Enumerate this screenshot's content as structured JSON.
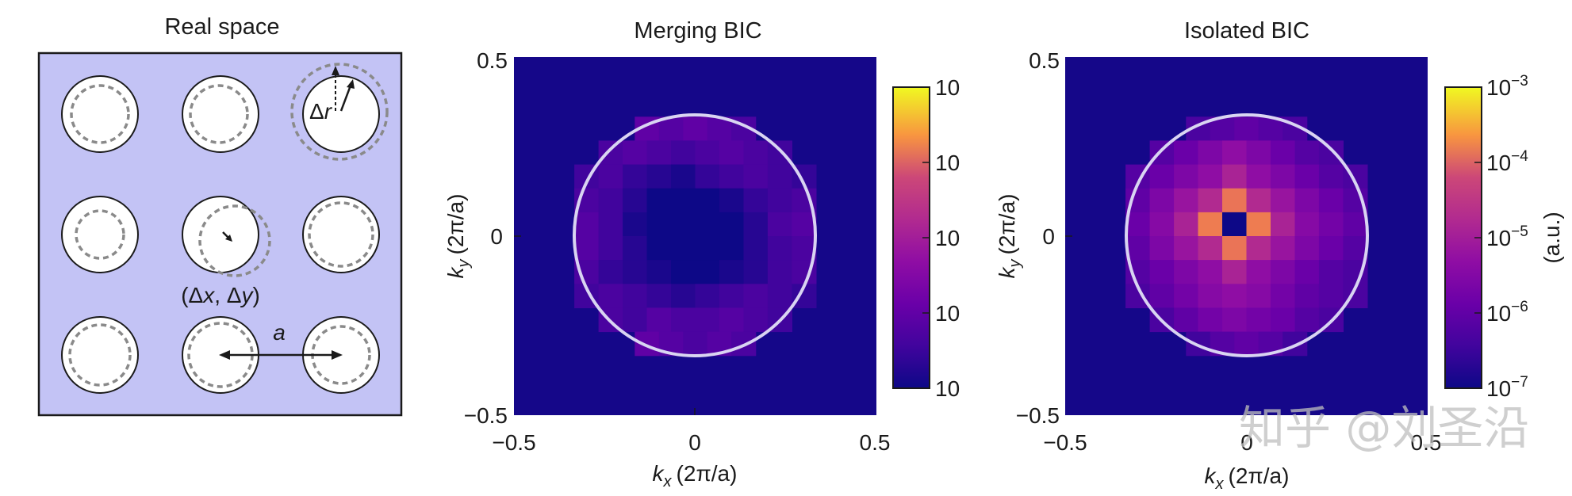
{
  "panel_a": {
    "title": "Real space",
    "dr_label_delta": "Δ",
    "dr_label_r": "r",
    "displacement_label": "(Δx, Δy)",
    "dx_delta": "Δ",
    "dx_var": "x",
    "dy_delta": "Δ",
    "dy_var": "y",
    "lattice_label": "a"
  },
  "panel_b": {
    "title": "Merging BIC",
    "colorbar_labels": [
      "10",
      "10",
      "10",
      "10",
      "10"
    ]
  },
  "panel_c": {
    "title": "Isolated BIC",
    "colorbar_base": "10",
    "colorbar_exponents": [
      "−3",
      "−4",
      "−5",
      "−6",
      "−7"
    ],
    "colorbar_unit": "(a.u.)"
  },
  "axes": {
    "xlabel_k": "k",
    "xlabel_sub": "x",
    "xlabel_unit": "(2π/a)",
    "ylabel_k": "k",
    "ylabel_sub": "y",
    "ylabel_unit": "(2π/a)",
    "tick_neg": "−0.5",
    "tick_zero": "0",
    "tick_pos": "0.5"
  },
  "watermark": "知乎 @刘圣沿",
  "colors": {
    "lattice_bg": "#c3c3f5",
    "map_bg": "#150789",
    "ring": "#d9d4f2"
  },
  "chart_data": [
    {
      "type": "heatmap",
      "title": "Merging BIC",
      "xlabel": "k_x (2π/a)",
      "ylabel": "k_y (2π/a)",
      "xlim": [
        -0.5,
        0.5
      ],
      "ylim": [
        -0.5,
        0.5
      ],
      "xticks": [
        -0.5,
        0,
        0.5
      ],
      "yticks": [
        -0.5,
        0,
        0.5
      ],
      "pixel_size": 0.0667,
      "circle_radius": 0.333,
      "colormap": "plasma",
      "color_scale": "log",
      "clim_log10": [
        -7,
        -3
      ],
      "rows_top_to_bottom": [
        [
          -6.3,
          -6.4,
          -6.3,
          -6.4,
          -6.5
        ],
        [
          -6.5,
          -6.4,
          -6.5,
          -6.6,
          -6.5,
          -6.4,
          -6.5,
          -6.6
        ],
        [
          -6.6,
          -6.5,
          -6.7,
          -6.8,
          -6.9,
          -6.7,
          -6.6,
          -6.5,
          -6.6,
          -6.7
        ],
        [
          -6.5,
          -6.6,
          -6.8,
          -7.0,
          -7.0,
          -7.0,
          -6.9,
          -6.7,
          -6.6,
          -6.5
        ],
        [
          -6.4,
          -6.6,
          -6.9,
          -7.0,
          -7.0,
          -7.0,
          -7.0,
          -6.8,
          -6.5,
          -6.4
        ],
        [
          -6.4,
          -6.6,
          -6.8,
          -7.0,
          -7.0,
          -7.0,
          -7.0,
          -6.8,
          -6.6,
          -6.5
        ],
        [
          -6.5,
          -6.7,
          -6.8,
          -6.9,
          -7.0,
          -7.0,
          -6.9,
          -6.8,
          -6.6,
          -6.5
        ],
        [
          -6.6,
          -6.5,
          -6.6,
          -6.7,
          -6.8,
          -6.7,
          -6.6,
          -6.5,
          -6.6,
          -6.7
        ],
        [
          -6.5,
          -6.6,
          -6.4,
          -6.5,
          -6.5,
          -6.4,
          -6.5,
          -6.6
        ],
        [
          -6.3,
          -6.4,
          -6.5,
          -6.4,
          -6.5
        ]
      ]
    },
    {
      "type": "heatmap",
      "title": "Isolated BIC",
      "xlabel": "k_x (2π/a)",
      "ylabel": "k_y (2π/a)",
      "xlim": [
        -0.5,
        0.5
      ],
      "ylim": [
        -0.5,
        0.5
      ],
      "xticks": [
        -0.5,
        0,
        0.5
      ],
      "yticks": [
        -0.5,
        0,
        0.5
      ],
      "pixel_size": 0.0667,
      "circle_radius": 0.333,
      "colormap": "plasma",
      "color_scale": "log",
      "clim_log10": [
        -7,
        -3
      ],
      "colorbar_ticks_log10": [
        -3,
        -4,
        -5,
        -6,
        -7
      ],
      "colorbar_label": "(a.u.)",
      "rows_top_to_bottom": [
        [
          -6.5,
          -6.4,
          -6.3,
          -6.4,
          -6.5
        ],
        [
          -6.4,
          -6.2,
          -6.0,
          -5.8,
          -6.0,
          -6.2,
          -6.4,
          -6.5
        ],
        [
          -6.4,
          -6.2,
          -6.0,
          -5.8,
          -5.5,
          -5.8,
          -6.0,
          -6.2,
          -6.4,
          -6.5
        ],
        [
          -6.3,
          -6.0,
          -5.7,
          -5.4,
          -4.4,
          -5.4,
          -5.7,
          -6.0,
          -6.2,
          -6.4
        ],
        [
          -6.2,
          -5.9,
          -5.5,
          -4.3,
          -7.0,
          -4.3,
          -5.5,
          -5.9,
          -6.1,
          -6.3
        ],
        [
          -6.3,
          -6.0,
          -5.7,
          -5.4,
          -4.4,
          -5.4,
          -5.7,
          -6.0,
          -6.2,
          -6.4
        ],
        [
          -6.4,
          -6.2,
          -6.0,
          -5.8,
          -5.5,
          -5.8,
          -6.0,
          -6.2,
          -6.4,
          -6.5
        ],
        [
          -6.5,
          -6.3,
          -6.1,
          -5.9,
          -5.8,
          -5.9,
          -6.1,
          -6.3,
          -6.4,
          -6.5
        ],
        [
          -6.5,
          -6.3,
          -6.1,
          -6.0,
          -6.1,
          -6.2,
          -6.4,
          -6.5
        ],
        [
          -6.6,
          -6.4,
          -6.3,
          -6.4,
          -6.6
        ]
      ]
    }
  ]
}
